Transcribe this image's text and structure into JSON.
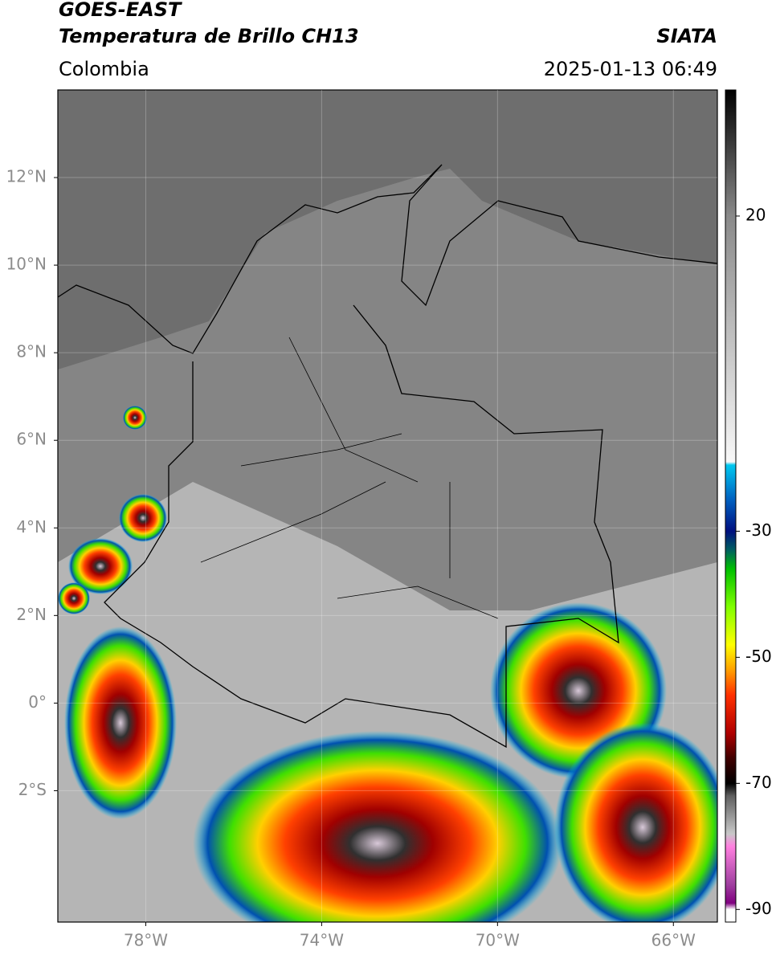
{
  "header": {
    "satellite": "GOES-EAST",
    "product": "Temperatura de Brillo CH13",
    "agency": "SIATA",
    "region": "Colombia",
    "datetime": "2025-01-13 06:49"
  },
  "map": {
    "lonlim": [
      -80,
      -65
    ],
    "latlim": [
      -5,
      14
    ],
    "grid": true,
    "lat_ticks": [
      {
        "value": 12,
        "label": "12°N"
      },
      {
        "value": 10,
        "label": "10°N"
      },
      {
        "value": 8,
        "label": "8°N"
      },
      {
        "value": 6,
        "label": "6°N"
      },
      {
        "value": 4,
        "label": "4°N"
      },
      {
        "value": 2,
        "label": "2°N"
      },
      {
        "value": 0,
        "label": "0°"
      },
      {
        "value": -2,
        "label": "2°S"
      }
    ],
    "lon_ticks": [
      {
        "value": -78,
        "label": "78°W"
      },
      {
        "value": -74,
        "label": "74°W"
      },
      {
        "value": -70,
        "label": "70°W"
      },
      {
        "value": -66,
        "label": "66°W"
      }
    ]
  },
  "colorbar": {
    "lim": [
      -92,
      40
    ],
    "ticks": [
      20,
      -30,
      -50,
      -70,
      -90
    ],
    "colormap": [
      {
        "value": 40,
        "color": "#000000"
      },
      {
        "value": 20,
        "color": "#8a8a8a"
      },
      {
        "value": -19,
        "color": "#f8f8f8"
      },
      {
        "value": -19.5,
        "color": "#00c8f0"
      },
      {
        "value": -25,
        "color": "#0060c0"
      },
      {
        "value": -30,
        "color": "#001080"
      },
      {
        "value": -33,
        "color": "#006060"
      },
      {
        "value": -36,
        "color": "#00c000"
      },
      {
        "value": -42,
        "color": "#80ff00"
      },
      {
        "value": -48,
        "color": "#ffff00"
      },
      {
        "value": -52,
        "color": "#ffa000"
      },
      {
        "value": -56,
        "color": "#ff3000"
      },
      {
        "value": -62,
        "color": "#b00000"
      },
      {
        "value": -66,
        "color": "#400000"
      },
      {
        "value": -70,
        "color": "#000000"
      },
      {
        "value": -72,
        "color": "#606060"
      },
      {
        "value": -78,
        "color": "#c8c8c8"
      },
      {
        "value": -80,
        "color": "#ff80e0"
      },
      {
        "value": -86,
        "color": "#a040a0"
      },
      {
        "value": -89,
        "color": "#800080"
      },
      {
        "value": -90,
        "color": "#ffffff"
      },
      {
        "value": -92,
        "color": "#ffffff"
      }
    ]
  }
}
